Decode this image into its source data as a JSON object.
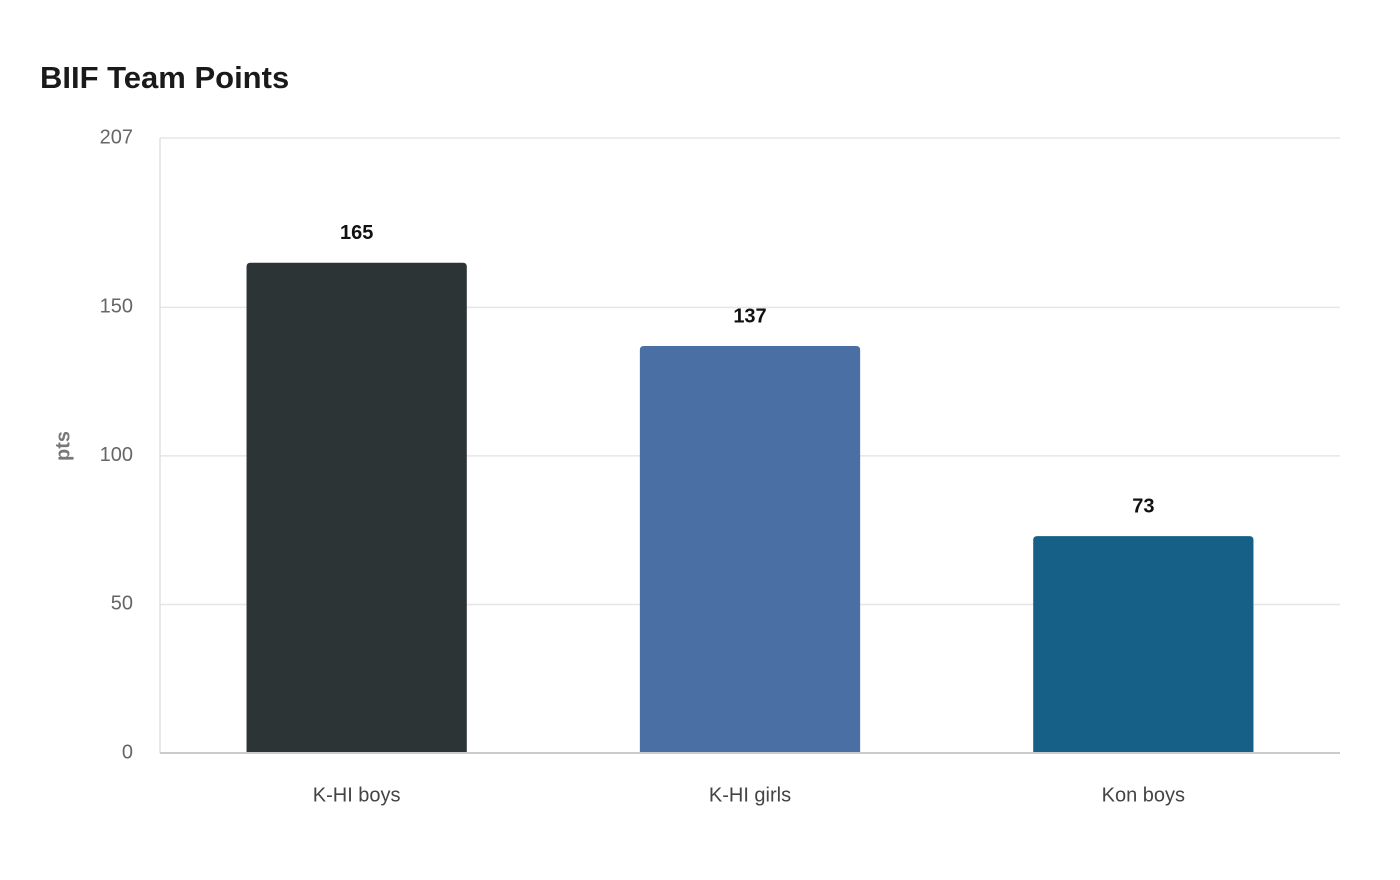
{
  "chart_data": {
    "type": "bar",
    "title": "BIIF Team Points",
    "y_label": "pts",
    "categories": [
      "K-HI boys",
      "K-HI girls",
      "Kon boys"
    ],
    "values": [
      165,
      137,
      73
    ],
    "colors": [
      "#2d3436",
      "#4a6fa5",
      "#166088"
    ],
    "ylim": [
      0,
      207
    ],
    "yticks": [
      0,
      50,
      100,
      150,
      207
    ],
    "grid": true
  }
}
